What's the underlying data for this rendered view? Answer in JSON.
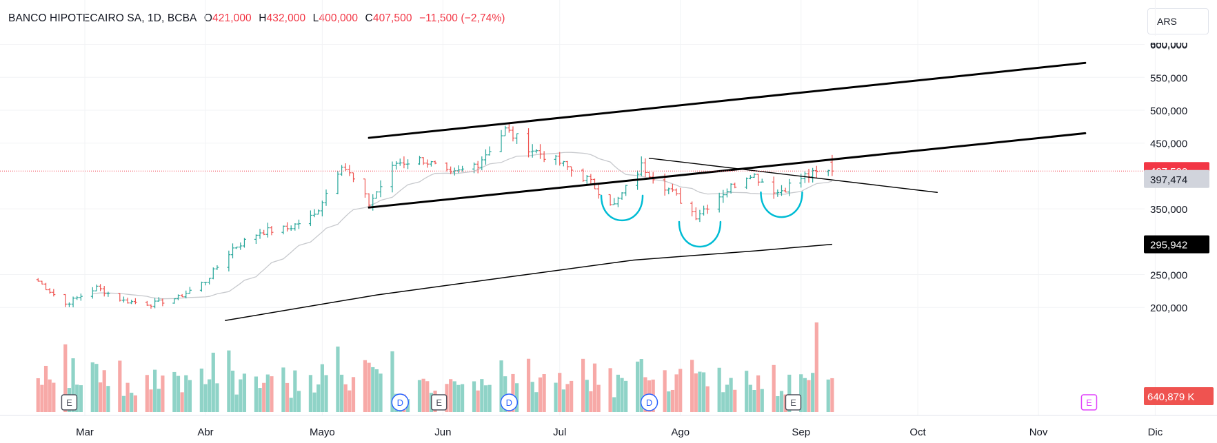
{
  "legend": {
    "symbol": "BANCO HIPOTECAIRO SA, 1D, BCBA",
    "open_label": "O",
    "open": "421,000",
    "high_label": "H",
    "high": "432,000",
    "low_label": "L",
    "low": "400,000",
    "close_label": "C",
    "close": "407,500",
    "change": "−11,500 (−2,74%)"
  },
  "currency": "ARS",
  "colors": {
    "up": "#26a69a",
    "down": "#ef5350",
    "volume_up": "#8fd3c7",
    "volume_down": "#f7a9a7",
    "trendline": "#000000",
    "fast_ma": "#c7c9cd",
    "slow_ma": "#000000",
    "annotation": "#00bcd4",
    "event_blue": "#2962ff",
    "event_future": "#e040fb"
  },
  "chart_data": {
    "type": "ohlc",
    "x_ticks": [
      "Mar",
      "Abr",
      "Mayo",
      "Jun",
      "Jul",
      "Ago",
      "Sep",
      "Oct",
      "Nov",
      "Dic"
    ],
    "y_ticks": [
      "600,000",
      "550,000",
      "500,000",
      "450,000",
      "350,000",
      "250,000",
      "200,000"
    ],
    "y_range": [
      180000,
      620000
    ],
    "price_labels": [
      {
        "value": 407500,
        "text": "407,500",
        "kind": "last"
      },
      {
        "value": 397474,
        "text": "397,474",
        "kind": "ma_fast"
      },
      {
        "value": 295942,
        "text": "295,942",
        "kind": "ma_slow"
      }
    ],
    "volume_label": "640,879 K",
    "series": [
      {
        "start": "2025-02-17",
        "anchors": [
          [
            "2025-02-17",
            240000
          ],
          [
            "2025-02-24",
            205000
          ],
          [
            "2025-03-04",
            230000
          ],
          [
            "2025-03-11",
            210000
          ],
          [
            "2025-03-18",
            205000
          ],
          [
            "2025-03-25",
            215000
          ],
          [
            "2025-04-01",
            240000
          ],
          [
            "2025-04-08",
            290000
          ],
          [
            "2025-04-15",
            315000
          ],
          [
            "2025-04-22",
            320000
          ],
          [
            "2025-04-29",
            340000
          ],
          [
            "2025-05-06",
            420000
          ],
          [
            "2025-05-13",
            358000
          ],
          [
            "2025-05-20",
            420000
          ],
          [
            "2025-05-27",
            425000
          ],
          [
            "2025-06-03",
            400000
          ],
          [
            "2025-06-10",
            420000
          ],
          [
            "2025-06-17",
            470000
          ],
          [
            "2025-06-24",
            440000
          ],
          [
            "2025-07-01",
            420000
          ],
          [
            "2025-07-08",
            395000
          ],
          [
            "2025-07-15",
            355000
          ],
          [
            "2025-07-22",
            415000
          ],
          [
            "2025-07-29",
            380000
          ],
          [
            "2025-08-05",
            340000
          ],
          [
            "2025-08-12",
            375000
          ],
          [
            "2025-08-19",
            405000
          ],
          [
            "2025-08-26",
            375000
          ],
          [
            "2025-09-02",
            400000
          ],
          [
            "2025-09-09",
            407500
          ]
        ]
      }
    ],
    "volume_spike_date": "2025-09-05",
    "trendlines": [
      {
        "name": "channel-upper",
        "from": [
          "2025-05-13",
          458000
        ],
        "to": [
          "2025-11-13",
          572000
        ],
        "width": 3
      },
      {
        "name": "channel-lower",
        "from": [
          "2025-05-13",
          352000
        ],
        "to": [
          "2025-11-13",
          465000
        ],
        "width": 3
      },
      {
        "name": "neckline-descending",
        "from": [
          "2025-07-24",
          427000
        ],
        "to": [
          "2025-10-06",
          375000
        ],
        "width": 1.4
      }
    ],
    "slow_ma": [
      [
        "2025-04-06",
        180000
      ],
      [
        "2025-05-15",
        219000
      ],
      [
        "2025-06-20",
        248000
      ],
      [
        "2025-07-20",
        272000
      ],
      [
        "2025-08-20",
        286000
      ],
      [
        "2025-09-09",
        296000
      ]
    ],
    "events": [
      {
        "type": "E",
        "date": "2025-02-25"
      },
      {
        "type": "D",
        "date": "2025-05-21"
      },
      {
        "type": "E",
        "date": "2025-05-31"
      },
      {
        "type": "D",
        "date": "2025-06-18"
      },
      {
        "type": "D",
        "date": "2025-07-24"
      },
      {
        "type": "E",
        "date": "2025-08-30"
      },
      {
        "type": "E",
        "date": "2025-11-14",
        "future": true
      }
    ],
    "annotations": [
      {
        "name": "left-shoulder-arc",
        "date": "2025-07-17",
        "level": 345000
      },
      {
        "name": "head-arc",
        "date": "2025-08-06",
        "level": 305000
      },
      {
        "name": "right-shoulder-arc",
        "date": "2025-08-27",
        "level": 350000
      }
    ]
  }
}
